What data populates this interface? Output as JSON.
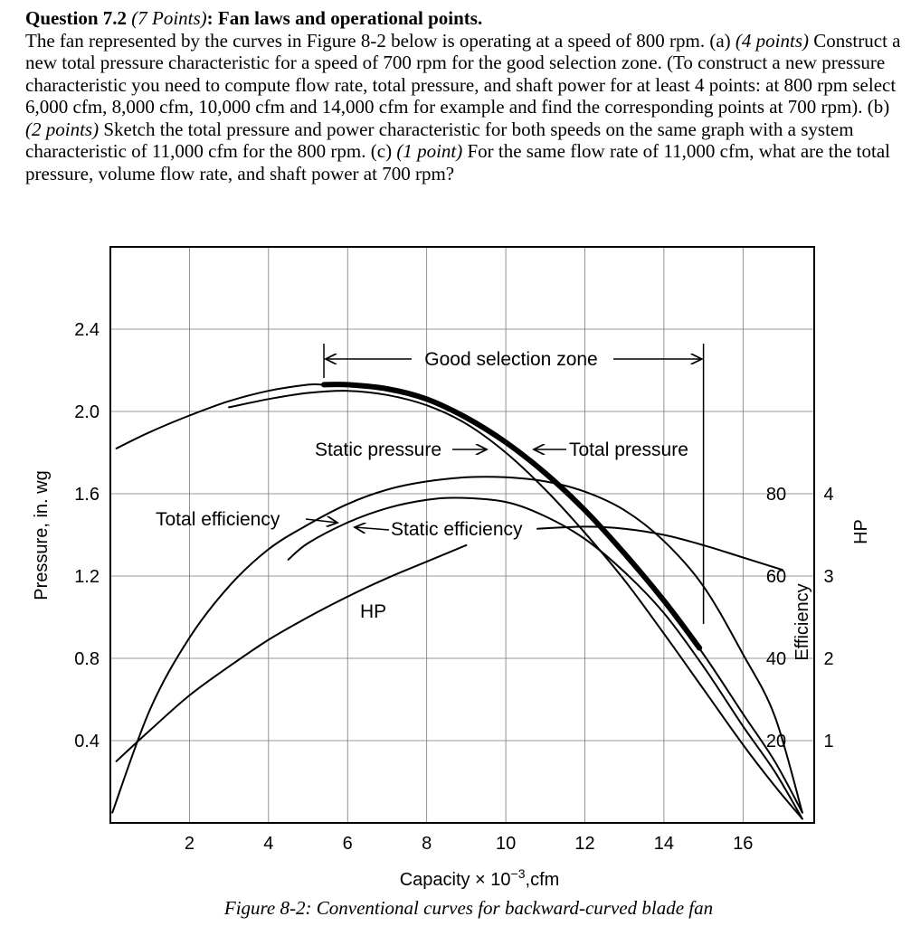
{
  "question": {
    "label": "Question 7.2",
    "points_label": "(7 Points)",
    "title": ":  Fan laws and operational points.",
    "intro": "The fan represented by the curves in Figure 8-2 below is operating at a speed of 800 rpm.",
    "part_a_label": "(a)",
    "part_a_points": "(4 points)",
    "part_a_text": "Construct a new total pressure characteristic for a speed of 700 rpm for the good selection zone. (To construct a new pressure characteristic you need to compute flow rate, total pressure, and shaft power for at least 4 points: at 800 rpm select 6,000 cfm, 8,000 cfm, 10,000 cfm and 14,000 cfm for example and find the corresponding points at 700 rpm).",
    "part_b_label": "(b)",
    "part_b_points": "(2 points)",
    "part_b_text": "Sketch the total pressure and power characteristic for both speeds on the same graph with a system characteristic of 11,000 cfm for the 800 rpm.",
    "part_c_label": "(c)",
    "part_c_points": "(1 point)",
    "part_c_text": "For the same flow rate of 11,000 cfm, what are the total pressure, volume flow rate, and shaft power at 700 rpm?"
  },
  "caption": "Figure 8-2: Conventional curves for backward-curved blade fan",
  "chart_data": {
    "type": "line",
    "xlabel_prefix": "Capacity × 10",
    "xlabel_exp": "−3",
    "xlabel_suffix": ",cfm",
    "ylabel": "Pressure, in. wg",
    "right_label_efficiency": "Efficiency",
    "right_label_hp": "HP",
    "xlim": [
      0,
      17.8
    ],
    "ylim": [
      0,
      2.8
    ],
    "x_ticks": [
      "2",
      "4",
      "6",
      "8",
      "10",
      "12",
      "14",
      "16"
    ],
    "y_ticks": [
      "0.4",
      "0.8",
      "1.2",
      "1.6",
      "2.0",
      "2.4"
    ],
    "efficiency_ticks": [
      "20",
      "40",
      "60",
      "80"
    ],
    "hp_ticks": [
      "1",
      "2",
      "3",
      "4"
    ],
    "grid": true,
    "annotations": {
      "good_zone": "Good selection zone",
      "good_zone_range": [
        5.4,
        15.0
      ],
      "static_pressure": "Static pressure",
      "total_pressure": "Total pressure",
      "total_efficiency": "Total efficiency",
      "static_efficiency": "Static efficiency",
      "hp": "HP"
    },
    "series": [
      {
        "name": "Total pressure",
        "x": [
          0.15,
          1,
          2,
          3,
          4,
          5,
          5.4,
          6,
          7,
          8,
          9,
          10,
          11,
          12,
          13,
          14,
          15,
          16,
          16.8,
          17.5
        ],
        "y": [
          1.82,
          1.9,
          1.98,
          2.05,
          2.1,
          2.13,
          2.13,
          2.13,
          2.11,
          2.06,
          1.97,
          1.85,
          1.7,
          1.52,
          1.31,
          1.08,
          0.82,
          0.53,
          0.3,
          0.05
        ]
      },
      {
        "name": "Static pressure",
        "x": [
          3,
          4,
          5,
          6,
          7,
          8,
          9,
          10,
          11,
          12,
          13,
          14,
          15,
          16,
          16.8,
          17.5
        ],
        "y": [
          2.02,
          2.06,
          2.09,
          2.1,
          2.08,
          2.03,
          1.94,
          1.8,
          1.62,
          1.41,
          1.18,
          0.92,
          0.65,
          0.38,
          0.18,
          0.02
        ]
      },
      {
        "name": "Total efficiency",
        "x": [
          0.05,
          1,
          2,
          3,
          4,
          5,
          6,
          7,
          8,
          9,
          10,
          11,
          12,
          13,
          14,
          15,
          16,
          16.8,
          17.5
        ],
        "y": [
          0.05,
          0.55,
          0.9,
          1.15,
          1.33,
          1.45,
          1.55,
          1.62,
          1.66,
          1.68,
          1.68,
          1.66,
          1.61,
          1.52,
          1.37,
          1.15,
          0.82,
          0.52,
          0.05
        ]
      },
      {
        "name": "Static efficiency",
        "x": [
          4.5,
          5,
          6,
          7,
          8,
          8.8,
          10,
          11,
          12,
          13,
          14,
          15,
          16,
          16.8,
          17.5
        ],
        "y": [
          1.28,
          1.36,
          1.46,
          1.53,
          1.57,
          1.58,
          1.56,
          1.49,
          1.38,
          1.22,
          1.02,
          0.76,
          0.47,
          0.25,
          0.02
        ]
      },
      {
        "name": "Flat efficiency branch",
        "x": [
          10.8,
          12,
          13,
          14,
          15,
          16,
          17
        ],
        "y": [
          1.43,
          1.44,
          1.43,
          1.4,
          1.35,
          1.29,
          1.23
        ]
      },
      {
        "name": "HP",
        "x": [
          0.15,
          1,
          2,
          3,
          4,
          5,
          6,
          7,
          8,
          9
        ],
        "y": [
          0.3,
          0.45,
          0.62,
          0.76,
          0.89,
          1.0,
          1.1,
          1.19,
          1.27,
          1.35
        ]
      },
      {
        "name": "Good selection zone (bold)",
        "x": [
          5.4,
          6,
          7,
          8,
          9,
          10,
          11,
          12,
          13,
          14,
          14.9
        ],
        "y": [
          2.13,
          2.13,
          2.11,
          2.06,
          1.97,
          1.85,
          1.7,
          1.52,
          1.31,
          1.08,
          0.85
        ]
      }
    ]
  }
}
